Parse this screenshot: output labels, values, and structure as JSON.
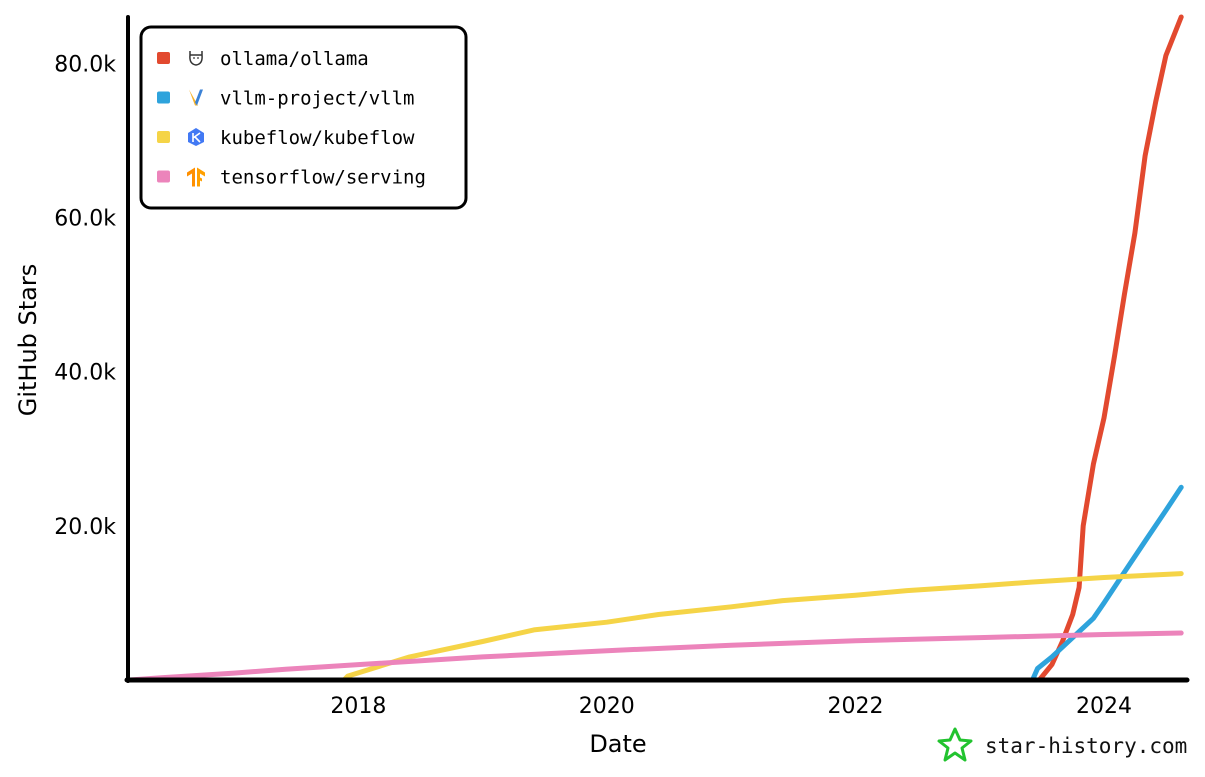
{
  "chart_data": {
    "type": "line",
    "title": "",
    "xlabel": "Date",
    "ylabel": "GitHub Stars",
    "x_ticks": [
      "2018",
      "2020",
      "2022",
      "2024"
    ],
    "y_ticks": [
      "20.0k",
      "40.0k",
      "60.0k",
      "80.0k"
    ],
    "xlim": [
      "2016-03-01",
      "2024-09-01"
    ],
    "ylim": [
      0,
      86000
    ],
    "grid": false,
    "legend_position": "top-left",
    "series": [
      {
        "name": "ollama/ollama",
        "color": "#e2492f",
        "icon": "llama-icon",
        "points": [
          [
            "2023-06-25",
            0
          ],
          [
            "2023-08-01",
            2000
          ],
          [
            "2023-09-01",
            5000
          ],
          [
            "2023-10-01",
            8500
          ],
          [
            "2023-10-20",
            12000
          ],
          [
            "2023-11-01",
            20000
          ],
          [
            "2023-12-01",
            28000
          ],
          [
            "2024-01-01",
            34000
          ],
          [
            "2024-02-01",
            42000
          ],
          [
            "2024-03-01",
            50000
          ],
          [
            "2024-04-01",
            58000
          ],
          [
            "2024-05-01",
            68000
          ],
          [
            "2024-06-01",
            75000
          ],
          [
            "2024-07-01",
            81000
          ],
          [
            "2024-08-15",
            86000
          ]
        ]
      },
      {
        "name": "vllm-project/vllm",
        "color": "#2ea3dc",
        "icon": "vllm-icon",
        "points": [
          [
            "2023-06-05",
            0
          ],
          [
            "2023-06-20",
            1500
          ],
          [
            "2023-08-01",
            3000
          ],
          [
            "2023-10-01",
            5500
          ],
          [
            "2023-12-01",
            8000
          ],
          [
            "2024-01-01",
            10000
          ],
          [
            "2024-03-01",
            14000
          ],
          [
            "2024-05-01",
            18000
          ],
          [
            "2024-07-01",
            22000
          ],
          [
            "2024-08-15",
            25000
          ]
        ]
      },
      {
        "name": "kubeflow/kubeflow",
        "color": "#f5d447",
        "icon": "kubeflow-icon",
        "points": [
          [
            "2017-11-20",
            0
          ],
          [
            "2017-12-01",
            500
          ],
          [
            "2018-06-01",
            3000
          ],
          [
            "2019-01-01",
            5000
          ],
          [
            "2019-06-01",
            6500
          ],
          [
            "2020-01-01",
            7500
          ],
          [
            "2020-06-01",
            8500
          ],
          [
            "2021-01-01",
            9500
          ],
          [
            "2021-06-01",
            10300
          ],
          [
            "2022-01-01",
            11000
          ],
          [
            "2022-06-01",
            11600
          ],
          [
            "2023-01-01",
            12200
          ],
          [
            "2023-06-01",
            12700
          ],
          [
            "2024-01-01",
            13300
          ],
          [
            "2024-08-15",
            13800
          ]
        ]
      },
      {
        "name": "tensorflow/serving",
        "color": "#ec84bb",
        "icon": "tensorflow-icon",
        "points": [
          [
            "2016-03-01",
            0
          ],
          [
            "2016-06-01",
            300
          ],
          [
            "2017-01-01",
            900
          ],
          [
            "2017-06-01",
            1400
          ],
          [
            "2018-01-01",
            2000
          ],
          [
            "2019-01-01",
            3000
          ],
          [
            "2020-01-01",
            3800
          ],
          [
            "2021-01-01",
            4500
          ],
          [
            "2022-01-01",
            5100
          ],
          [
            "2023-01-01",
            5500
          ],
          [
            "2024-01-01",
            5900
          ],
          [
            "2024-08-15",
            6100
          ]
        ]
      }
    ]
  },
  "footer": {
    "brand_text": "star-history.com",
    "brand_icon": "star-history-logo-icon",
    "brand_color": "#22c32f"
  }
}
